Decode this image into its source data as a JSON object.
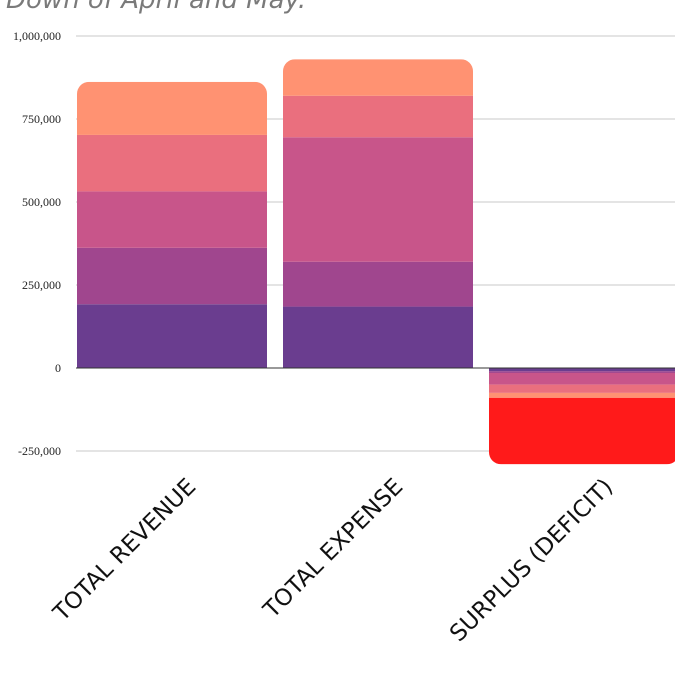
{
  "chart_data": {
    "type": "bar",
    "stacked": true,
    "title": "Down of April and May.",
    "categories": [
      "TOTAL REVENUE",
      "TOTAL EXPENSE",
      "SURPLUS (DEFICIT)"
    ],
    "ylim": [
      -250000,
      1000000
    ],
    "yticks": [
      "1,000,000",
      "750,000",
      "500,000",
      "250,000",
      "0",
      "-250,000"
    ],
    "ytick_values": [
      1000000,
      750000,
      500000,
      250000,
      0,
      -250000
    ],
    "grid": true,
    "series": [
      {
        "color": "#6a3d8f",
        "values": [
          192000,
          185000,
          -10000
        ]
      },
      {
        "color": "#a0468e",
        "values": [
          170000,
          135000,
          -5000
        ]
      },
      {
        "color": "#c8558a",
        "values": [
          170000,
          375000,
          -35000
        ]
      },
      {
        "color": "#ea6f7e",
        "values": [
          170000,
          125000,
          -25000
        ]
      },
      {
        "color": "#ff9272",
        "values": [
          160000,
          110000,
          -15000
        ]
      },
      {
        "color": "#ff1a1a",
        "values": [
          0,
          0,
          -200000
        ]
      }
    ]
  }
}
